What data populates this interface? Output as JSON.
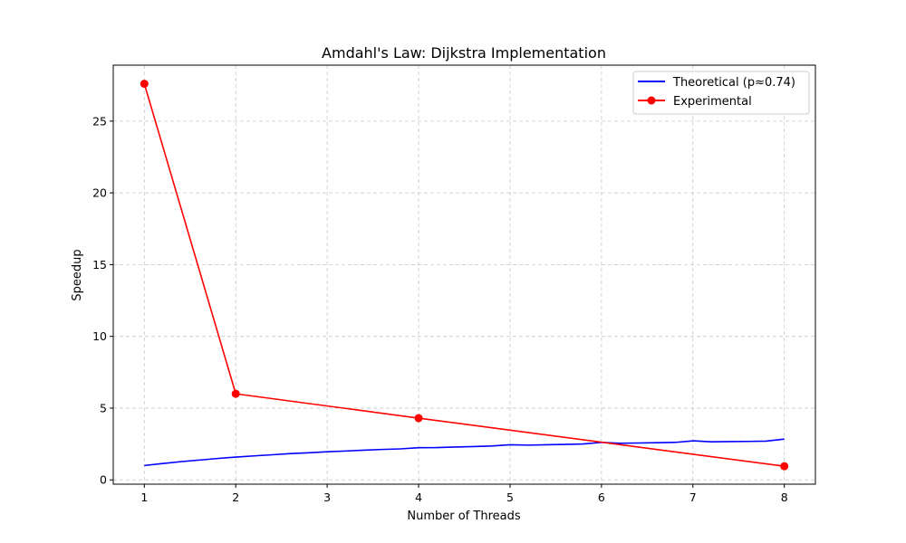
{
  "chart_data": {
    "type": "line",
    "title": "Amdahl's Law: Dijkstra Implementation",
    "xlabel": "Number of Threads",
    "ylabel": "Speedup",
    "xlim": [
      0.66,
      8.34
    ],
    "ylim": [
      -0.3,
      28.9
    ],
    "x_ticks": [
      1,
      2,
      3,
      4,
      5,
      6,
      7,
      8
    ],
    "y_ticks": [
      0,
      5,
      10,
      15,
      20,
      25
    ],
    "grid": true,
    "legend_position": "top-right",
    "series": [
      {
        "name": "Theoretical (p≈0.74)",
        "color": "#0000ff",
        "marker": "none",
        "x": [
          1.0,
          1.2,
          1.4,
          1.6,
          1.8,
          2.0,
          2.2,
          2.4,
          2.6,
          2.8,
          3.0,
          3.2,
          3.4,
          3.6,
          3.8,
          4.0,
          4.2,
          4.4,
          4.6,
          4.8,
          5.0,
          5.2,
          5.4,
          5.6,
          5.8,
          6.0,
          6.2,
          6.4,
          6.6,
          6.8,
          7.0,
          7.2,
          7.4,
          7.6,
          7.8,
          8.0
        ],
        "y": [
          1.0,
          1.14,
          1.27,
          1.38,
          1.49,
          1.59,
          1.67,
          1.75,
          1.83,
          1.89,
          1.96,
          2.01,
          2.07,
          2.12,
          2.16,
          2.24,
          2.25,
          2.29,
          2.32,
          2.36,
          2.45,
          2.42,
          2.45,
          2.47,
          2.5,
          2.61,
          2.55,
          2.57,
          2.59,
          2.61,
          2.72,
          2.65,
          2.67,
          2.68,
          2.7,
          2.84
        ]
      },
      {
        "name": "Experimental",
        "color": "#ff0000",
        "marker": "circle",
        "x": [
          1,
          2,
          4,
          8
        ],
        "y": [
          27.6,
          6.0,
          4.3,
          0.95
        ]
      }
    ]
  }
}
